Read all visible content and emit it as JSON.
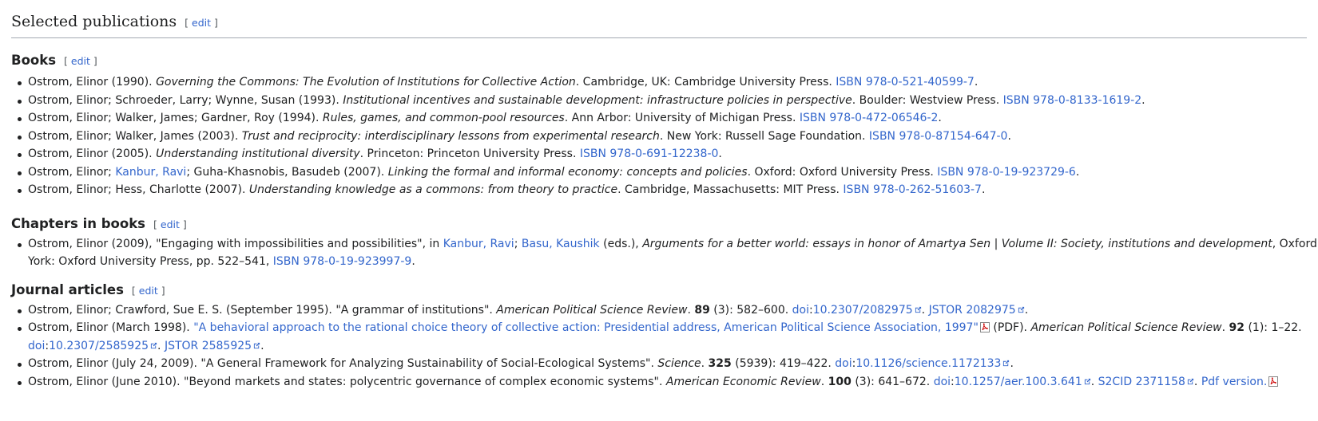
{
  "section_title": "Selected publications",
  "edit_label": "edit",
  "books": {
    "heading": "Books",
    "items": [
      {
        "pre": "Ostrom, Elinor (1990). ",
        "title": "Governing the Commons: The Evolution of Institutions for Collective Action",
        "post": ". Cambridge, UK: Cambridge University Press. ",
        "isbn": "ISBN 978-0-521-40599-7"
      },
      {
        "pre": "Ostrom, Elinor; Schroeder, Larry; Wynne, Susan (1993). ",
        "title": "Institutional incentives and sustainable development: infrastructure policies in perspective",
        "post": ". Boulder: Westview Press. ",
        "isbn": "ISBN 978-0-8133-1619-2"
      },
      {
        "pre": "Ostrom, Elinor; Walker, James; Gardner, Roy (1994). ",
        "title": "Rules, games, and common-pool resources",
        "post": ". Ann Arbor: University of Michigan Press. ",
        "isbn": "ISBN 978-0-472-06546-2"
      },
      {
        "pre": "Ostrom, Elinor; Walker, James (2003). ",
        "title": "Trust and reciprocity: interdisciplinary lessons from experimental research",
        "post": ". New York: Russell Sage Foundation. ",
        "isbn": "ISBN 978-0-87154-647-0"
      },
      {
        "pre": "Ostrom, Elinor (2005). ",
        "title": "Understanding institutional diversity",
        "post": ". Princeton: Princeton University Press. ",
        "isbn": "ISBN 978-0-691-12238-0"
      },
      {
        "pre": "Ostrom, Elinor; ",
        "link": "Kanbur, Ravi",
        "mid": "; Guha-Khasnobis, Basudeb (2007). ",
        "title": "Linking the formal and informal economy: concepts and policies",
        "post": ". Oxford: Oxford University Press. ",
        "isbn": "ISBN 978-0-19-923729-6"
      },
      {
        "pre": "Ostrom, Elinor; Hess, Charlotte (2007). ",
        "title": "Understanding knowledge as a commons: from theory to practice",
        "post": ". Cambridge, Massachusetts: MIT Press. ",
        "isbn": "ISBN 978-0-262-51603-7"
      }
    ]
  },
  "chapters": {
    "heading": "Chapters in books",
    "item": {
      "pre": "Ostrom, Elinor (2009), \"Engaging with impossibilities and possibilities\", in ",
      "link1": "Kanbur, Ravi",
      "sep": "; ",
      "link2": "Basu, Kaushik",
      "eds": " (eds.), ",
      "title": "Arguments for a better world: essays in honor of Amartya Sen | Volume II: Society, institutions and development",
      "post1": ", Oxford",
      "line2": "York: Oxford University Press, pp. 522–541, ",
      "isbn": "ISBN 978-0-19-923997-9"
    }
  },
  "journals": {
    "heading": "Journal articles",
    "items": [
      {
        "pre": "Ostrom, Elinor; Crawford, Sue E. S. (September 1995). \"A grammar of institutions\". ",
        "journal": "American Political Science Review",
        "vol": "89",
        "issue": " (3): 582–600. ",
        "doi_label": "doi",
        "doi": "10.2307/2082975",
        "jstor": "JSTOR 2082975"
      },
      {
        "pre": "Ostrom, Elinor (March 1998). ",
        "title_link": "\"A behavioral approach to the rational choice theory of collective action: Presidential address, American Political Science Association, 1997\"",
        "pdf": " (PDF). ",
        "journal": "American Political Science Review",
        "vol": "92",
        "issue": " (1): 1–22.",
        "doi_label": "doi",
        "doi": "10.2307/2585925",
        "jstor": "JSTOR 2585925"
      },
      {
        "pre": "Ostrom, Elinor (July 24, 2009). \"A General Framework for Analyzing Sustainability of Social-Ecological Systems\". ",
        "journal": "Science",
        "vol": "325",
        "issue": " (5939): 419–422. ",
        "doi_label": "doi",
        "doi": "10.1126/science.1172133"
      },
      {
        "pre": "Ostrom, Elinor (June 2010). \"Beyond markets and states: polycentric governance of complex economic systems\". ",
        "journal": "American Economic Review",
        "vol": "100",
        "issue": " (3): 641–672. ",
        "doi_label": "doi",
        "doi": "10.1257/aer.100.3.641",
        "s2cid": "S2CID 2371158",
        "pdf_link": "Pdf version."
      }
    ]
  }
}
